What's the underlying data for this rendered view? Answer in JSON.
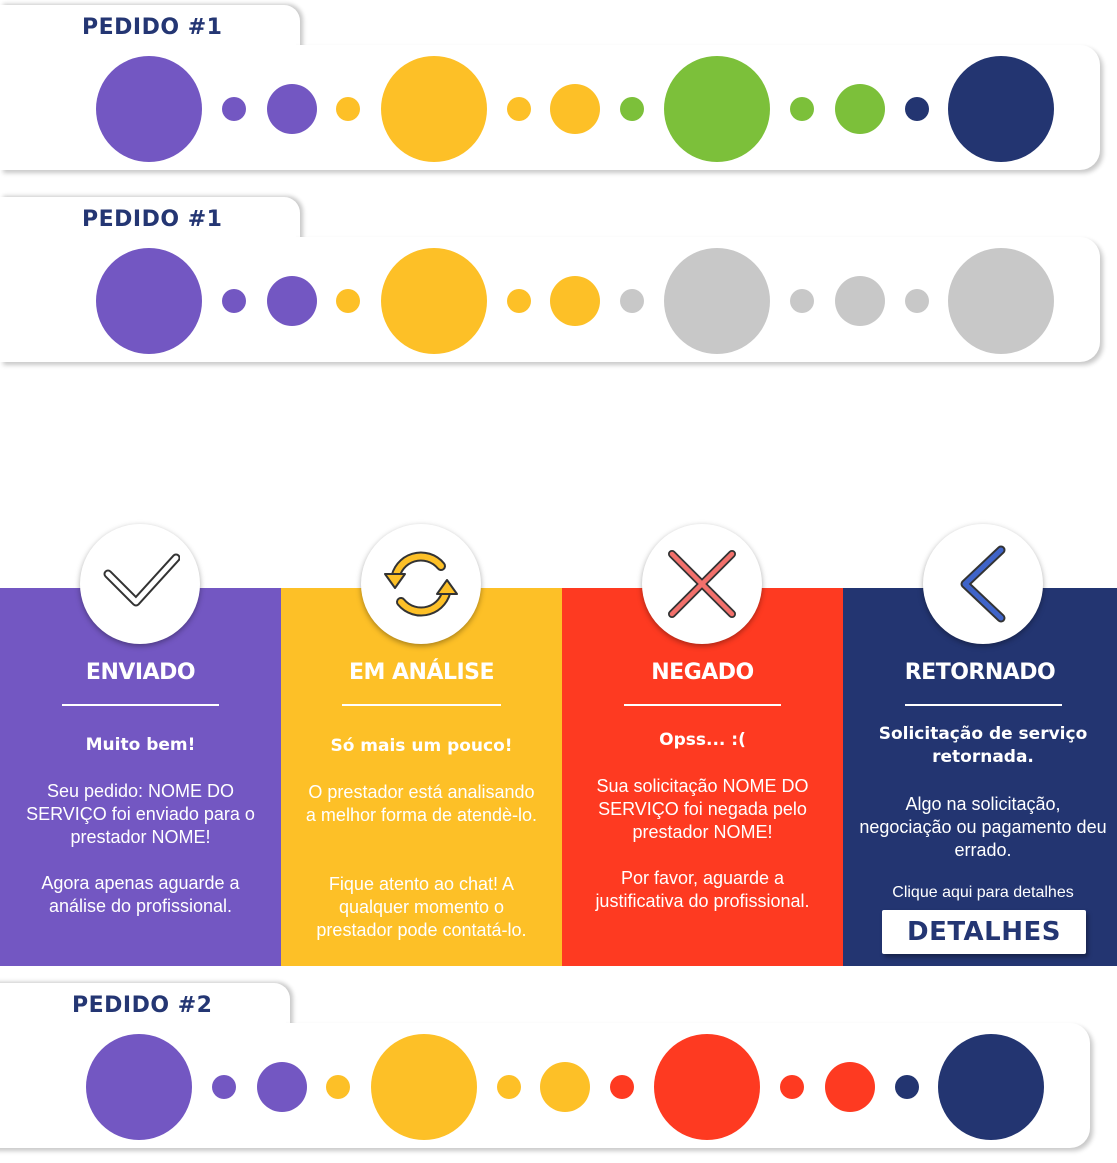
{
  "colors": {
    "purple": "#7357c2",
    "yellow": "#fdc027",
    "green": "#7cc03a",
    "navy": "#233571",
    "gray": "#c8c8c8",
    "red": "#fe3a21"
  },
  "orders": [
    {
      "label": "PEDIDO #1",
      "steps": [
        "purple",
        "yellow",
        "green",
        "navy"
      ]
    },
    {
      "label": "PEDIDO #1",
      "steps": [
        "purple",
        "yellow",
        "gray",
        "gray"
      ]
    },
    {
      "label": "PEDIDO #2",
      "steps": [
        "purple",
        "yellow",
        "red",
        "navy"
      ]
    }
  ],
  "panels": [
    {
      "title": "ENVIADO",
      "icon": "check-icon",
      "color": "#7357c2",
      "lead": "Muito bem!",
      "text1": "Seu pedido: NOME DO SERVIÇO foi enviado para o prestador NOME!",
      "text2": "Agora apenas aguarde a análise do profissional."
    },
    {
      "title": "EM ANÁLISE",
      "icon": "refresh-icon",
      "color": "#fdc027",
      "lead": "Só mais um pouco!",
      "text1": "O prestador está analisando a melhor forma de atendè-lo.",
      "text2": "Fique atento ao chat! A qualquer momento o prestador pode contatá-lo."
    },
    {
      "title": "NEGADO",
      "icon": "close-icon",
      "color": "#fe3a21",
      "lead": "Opss... :(",
      "text1": "Sua solicitação NOME DO SERVIÇO foi negada pelo prestador NOME!",
      "text2": "Por favor, aguarde a justificativa do profissional."
    },
    {
      "title": "RETORNADO",
      "icon": "chevron-left-icon",
      "color": "#233571",
      "lead": "Solicitação de serviço retornada.",
      "text1": "Algo na solicitação, negociação ou pagamento deu errado.",
      "small": "Clique aqui para detalhes",
      "button": "DETALHES"
    }
  ]
}
